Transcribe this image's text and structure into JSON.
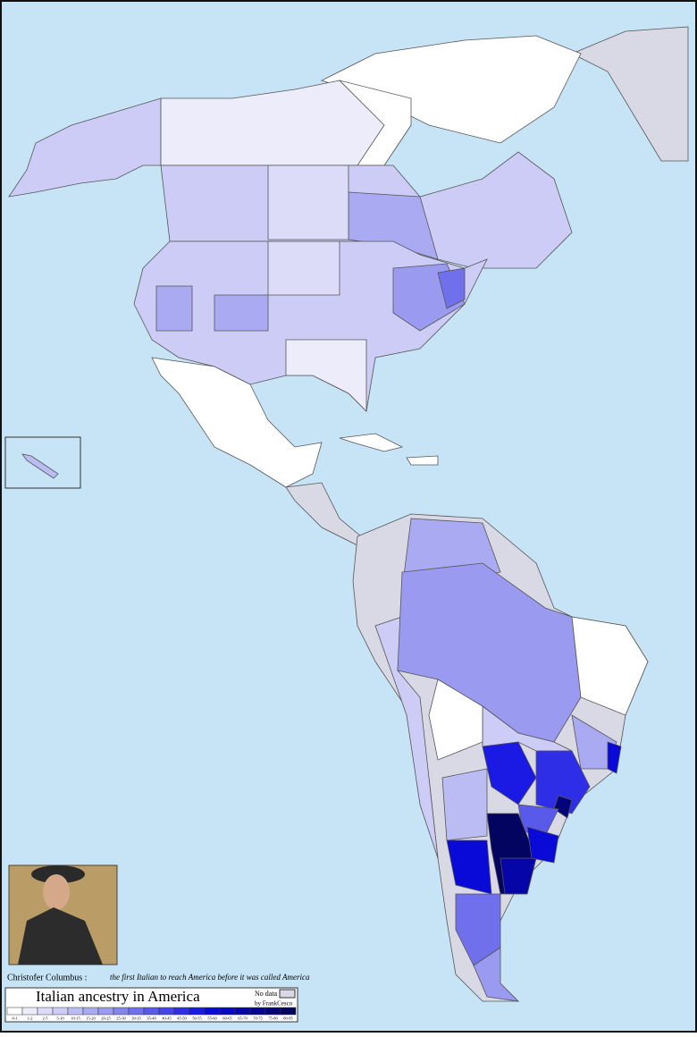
{
  "caption": {
    "name": "Christofer Columbus :",
    "note": "the first Italian to reach America before it was called America"
  },
  "legend": {
    "title": "Italian ancestry in America",
    "no_data": "No data",
    "credit": "by FrankCesco",
    "items": [
      {
        "label": "0-1",
        "color": "#ffffff"
      },
      {
        "label": "1-2",
        "color": "#ececfb"
      },
      {
        "label": "2-5",
        "color": "#dcdcf8"
      },
      {
        "label": "5-10",
        "color": "#ccccf6"
      },
      {
        "label": "10-15",
        "color": "#bcbcf4"
      },
      {
        "label": "15-20",
        "color": "#aaaaf2"
      },
      {
        "label": "20-25",
        "color": "#9a9af0"
      },
      {
        "label": "25-30",
        "color": "#8585ee"
      },
      {
        "label": "30-35",
        "color": "#7070ec"
      },
      {
        "label": "35-40",
        "color": "#5a5aea"
      },
      {
        "label": "40-45",
        "color": "#4444e8"
      },
      {
        "label": "45-50",
        "color": "#2e2ee6"
      },
      {
        "label": "50-55",
        "color": "#1a1ae4"
      },
      {
        "label": "55-60",
        "color": "#0a0ad8"
      },
      {
        "label": "60-65",
        "color": "#0808c0"
      },
      {
        "label": "65-70",
        "color": "#0606a8"
      },
      {
        "label": "70-75",
        "color": "#050590"
      },
      {
        "label": "75-80",
        "color": "#040478"
      },
      {
        "label": "80-85",
        "color": "#030360"
      }
    ]
  }
}
